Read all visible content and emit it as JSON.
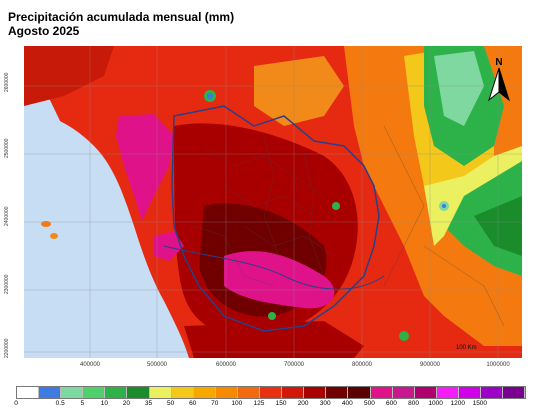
{
  "title": "Precipitación acumulada mensual (mm)",
  "subtitle": "Agosto 2025",
  "y_ticks": [
    "2600000",
    "2500000",
    "2400000",
    "2300000",
    "2200000"
  ],
  "x_ticks": [
    "400000",
    "500000",
    "600000",
    "700000",
    "800000",
    "900000",
    "1000000"
  ],
  "north_label": "N",
  "scale_label": "100 Km",
  "legend": {
    "colors": [
      "#ffffff",
      "#3d7be0",
      "#7ed8a0",
      "#4fd06a",
      "#2db24a",
      "#1a8c2c",
      "#eaf060",
      "#f4c81a",
      "#f6a800",
      "#f58a00",
      "#f26a10",
      "#e83010",
      "#d21808",
      "#a80000",
      "#700000",
      "#5a0000",
      "#e0128a",
      "#c81890",
      "#b0006e",
      "#f21ef5",
      "#d000e8",
      "#9e00c8",
      "#7a0090"
    ],
    "labels": [
      "0",
      "0.5",
      "5",
      "10",
      "20",
      "35",
      "50",
      "60",
      "70",
      "100",
      "125",
      "150",
      "200",
      "300",
      "400",
      "500",
      "600",
      "800",
      "1000",
      "1200",
      "1500"
    ]
  }
}
